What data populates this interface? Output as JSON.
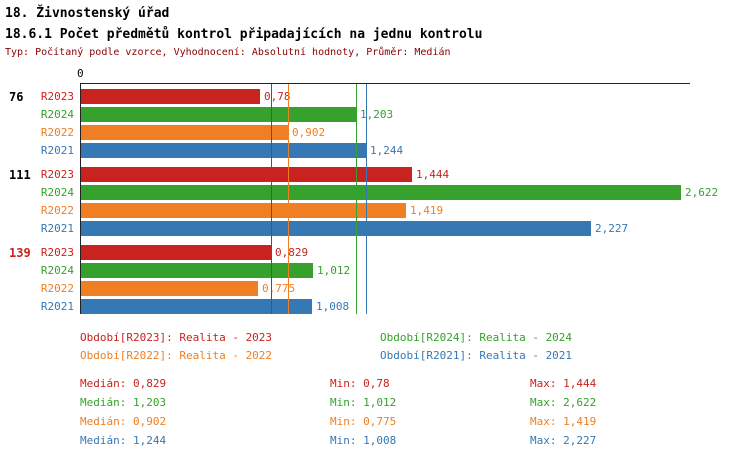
{
  "colors": {
    "R2023": "#c8231f",
    "R2024": "#36a12c",
    "R2022": "#ef7f22",
    "R2021": "#3678b4",
    "meta_text": "#8b0000",
    "axis": "#222222"
  },
  "chart_data": {
    "type": "bar",
    "orientation": "horizontal",
    "title": "18. Živnostenský úřad",
    "subtitle": "18.6.1 Počet předmětů kontrol připadajících na jednu kontrolu",
    "meta": "Typ: Počítaný podle vzorce, Vyhodnocení: Absolutní hodnoty, Průměr: Medián",
    "origin_label": "0",
    "series_order": [
      "R2023",
      "R2024",
      "R2022",
      "R2021"
    ],
    "groups": [
      {
        "label": "76",
        "label_color": "#000000",
        "bars": [
          {
            "series": "R2023",
            "value": 0.78,
            "display": "0,78"
          },
          {
            "series": "R2024",
            "value": 1.203,
            "display": "1,203"
          },
          {
            "series": "R2022",
            "value": 0.902,
            "display": "0,902"
          },
          {
            "series": "R2021",
            "value": 1.244,
            "display": "1,244"
          }
        ]
      },
      {
        "label": "111",
        "label_color": "#000000",
        "bars": [
          {
            "series": "R2023",
            "value": 1.444,
            "display": "1,444"
          },
          {
            "series": "R2024",
            "value": 2.622,
            "display": "2,622"
          },
          {
            "series": "R2022",
            "value": 1.419,
            "display": "1,419"
          },
          {
            "series": "R2021",
            "value": 2.227,
            "display": "2,227"
          }
        ]
      },
      {
        "label": "139",
        "label_color": "#c8231f",
        "bars": [
          {
            "series": "R2023",
            "value": 0.829,
            "display": "0,829"
          },
          {
            "series": "R2024",
            "value": 1.012,
            "display": "1,012"
          },
          {
            "series": "R2022",
            "value": 0.775,
            "display": "0,775"
          },
          {
            "series": "R2021",
            "value": 1.008,
            "display": "1,008"
          }
        ]
      }
    ],
    "median_lines": [
      {
        "series": "R2023",
        "value": 0.829
      },
      {
        "series": "R2024",
        "value": 1.203
      },
      {
        "series": "R2022",
        "value": 0.902
      },
      {
        "series": "R2021",
        "value": 1.244
      }
    ]
  },
  "legend": [
    {
      "series": "R2023",
      "text": "Období[R2023]: Realita - 2023"
    },
    {
      "series": "R2024",
      "text": "Období[R2024]: Realita - 2024"
    },
    {
      "series": "R2022",
      "text": "Období[R2022]: Realita - 2022"
    },
    {
      "series": "R2021",
      "text": "Období[R2021]: Realita - 2021"
    }
  ],
  "stats": [
    {
      "series": "R2023",
      "median": "Medián: 0,829",
      "min": "Min: 0,78",
      "max": "Max: 1,444"
    },
    {
      "series": "R2024",
      "median": "Medián: 1,203",
      "min": "Min: 1,012",
      "max": "Max: 2,622"
    },
    {
      "series": "R2022",
      "median": "Medián: 0,902",
      "min": "Min: 0,775",
      "max": "Max: 1,419"
    },
    {
      "series": "R2021",
      "median": "Medián: 1,244",
      "min": "Min: 1,008",
      "max": "Max: 2,227"
    }
  ]
}
